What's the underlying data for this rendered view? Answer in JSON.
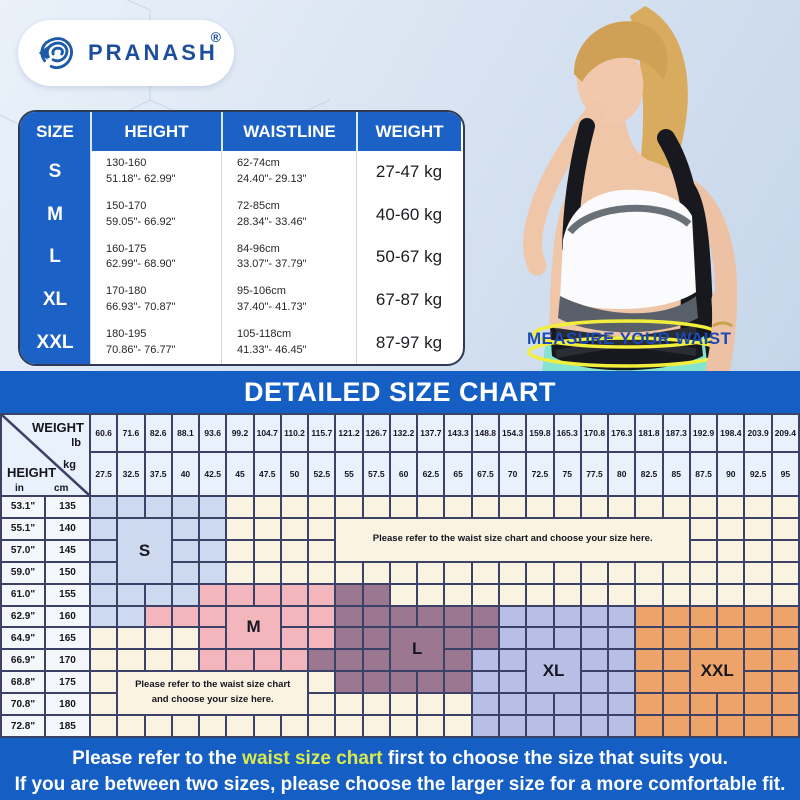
{
  "brand": {
    "name": "PRANASH",
    "registered": "®"
  },
  "colors": {
    "accent_blue": "#1b61c6",
    "banner_blue": "#155fc4",
    "grid_line_navy": "#3c4167",
    "cream": "#fbf3e1",
    "size_s": "#cdd9ef",
    "size_m": "#f3b6bd",
    "size_l": "#9b7890",
    "size_xl": "#b7bfe7",
    "size_xxl": "#eea36b",
    "highlight_yellow": "#dce94e",
    "caption_blue": "#1a49b8",
    "waist_ellipse_yellow": "#f1ef3b"
  },
  "size_table": {
    "headers": [
      "SIZE",
      "HEIGHT",
      "WAISTLINE",
      "WEIGHT"
    ],
    "rows": [
      {
        "size": "S",
        "height_cm": "130-160",
        "height_in": "51.18\"- 62.99\"",
        "waist_cm": "62-74cm",
        "waist_in": "24.40\"- 29.13\"",
        "weight": "27-47 kg"
      },
      {
        "size": "M",
        "height_cm": "150-170",
        "height_in": "59.05\"- 66.92\"",
        "waist_cm": "72-85cm",
        "waist_in": "28.34\"- 33.46\"",
        "weight": "40-60 kg"
      },
      {
        "size": "L",
        "height_cm": "160-175",
        "height_in": "62.99\"- 68.90\"",
        "waist_cm": "84-96cm",
        "waist_in": "33.07\"- 37.79\"",
        "weight": "50-67 kg"
      },
      {
        "size": "XL",
        "height_cm": "170-180",
        "height_in": "66.93\"- 70.87\"",
        "waist_cm": "95-106cm",
        "waist_in": "37.40\"- 41.73\"",
        "weight": "67-87 kg"
      },
      {
        "size": "XXL",
        "height_cm": "180-195",
        "height_in": "70.86\"- 76.77\"",
        "waist_cm": "105-118cm",
        "waist_in": "41.33\"- 46.45\"",
        "weight": "87-97 kg"
      }
    ]
  },
  "photo": {
    "caption": "MEASURE YOUR WAIST"
  },
  "banner": {
    "title": "DETAILED SIZE CHART"
  },
  "chart_data": {
    "type": "heatmap",
    "title": "DETAILED SIZE CHART",
    "xlabel": "WEIGHT",
    "ylabel": "HEIGHT",
    "corner": {
      "weight_label": "WEIGHT",
      "lb_label": "lb",
      "kg_label": "kg",
      "height_label": "HEIGHT",
      "in_label": "in",
      "cm_label": "cm"
    },
    "weight_lb": [
      "60.6",
      "71.6",
      "82.6",
      "88.1",
      "93.6",
      "99.2",
      "104.7",
      "110.2",
      "115.7",
      "121.2",
      "126.7",
      "132.2",
      "137.7",
      "143.3",
      "148.8",
      "154.3",
      "159.8",
      "165.3",
      "170.8",
      "176.3",
      "181.8",
      "187.3",
      "192.9",
      "198.4",
      "203.9",
      "209.4"
    ],
    "weight_kg": [
      "27.5",
      "32.5",
      "37.5",
      "40",
      "42.5",
      "45",
      "47.5",
      "50",
      "52.5",
      "55",
      "57.5",
      "60",
      "62.5",
      "65",
      "67.5",
      "70",
      "72.5",
      "75",
      "77.5",
      "80",
      "82.5",
      "85",
      "87.5",
      "90",
      "92.5",
      "95"
    ],
    "height_in": [
      "53.1\"",
      "55.1\"",
      "57.0\"",
      "59.0\"",
      "61.0\"",
      "62.9\"",
      "64.9\"",
      "66.9\"",
      "68.8\"",
      "70.8\"",
      "72.8\""
    ],
    "height_cm": [
      "135",
      "140",
      "145",
      "150",
      "155",
      "160",
      "165",
      "170",
      "175",
      "180",
      "185"
    ],
    "regions": {
      "S": {
        "rows": {
          "0": [
            1,
            5
          ],
          "1": [
            1,
            5
          ],
          "2": [
            1,
            5
          ],
          "3": [
            1,
            5
          ],
          "4": [
            1,
            4
          ],
          "5": [
            1,
            2
          ]
        }
      },
      "M": {
        "rows": {
          "4": [
            5,
            9
          ],
          "5": [
            3,
            9
          ],
          "6": [
            5,
            9
          ],
          "7": [
            5,
            8
          ]
        }
      },
      "L": {
        "rows": {
          "4": [
            10,
            11
          ],
          "5": [
            10,
            15
          ],
          "6": [
            10,
            15
          ],
          "7": [
            9,
            14
          ],
          "8": [
            10,
            14
          ]
        }
      },
      "XL": {
        "rows": {
          "5": [
            16,
            20
          ],
          "6": [
            16,
            20
          ],
          "7": [
            15,
            20
          ],
          "8": [
            15,
            20
          ],
          "9": [
            15,
            20
          ],
          "10": [
            15,
            20
          ]
        }
      },
      "XXL": {
        "rows": {
          "5": [
            21,
            26
          ],
          "6": [
            21,
            26
          ],
          "7": [
            21,
            26
          ],
          "8": [
            21,
            26
          ],
          "9": [
            21,
            26
          ],
          "10": [
            21,
            26
          ]
        }
      }
    },
    "labels": [
      {
        "text": "S",
        "region": "S",
        "col": 2,
        "colSpan": 2,
        "row": 1,
        "rowSpan": 3
      },
      {
        "text": "M",
        "region": "M",
        "col": 6,
        "colSpan": 2,
        "row": 5,
        "rowSpan": 2
      },
      {
        "text": "L",
        "region": "L",
        "col": 12,
        "colSpan": 2,
        "row": 6,
        "rowSpan": 2
      },
      {
        "text": "XL",
        "region": "XL",
        "col": 17,
        "colSpan": 2,
        "row": 7,
        "rowSpan": 2
      },
      {
        "text": "XXL",
        "region": "XXL",
        "col": 23,
        "colSpan": 2,
        "row": 7,
        "rowSpan": 2
      }
    ],
    "notes": [
      {
        "lines": [
          "Please refer to the waist size chart and choose your size here."
        ],
        "col": 10,
        "colSpan": 13,
        "row": 1,
        "rowSpan": 2
      },
      {
        "lines": [
          "Please refer to the waist size chart",
          "and choose your size here."
        ],
        "col": 2,
        "colSpan": 7,
        "row": 8,
        "rowSpan": 2
      }
    ]
  },
  "footer": {
    "line1_pre": "Please refer to the ",
    "line1_highlight": "waist size chart",
    "line1_post": " first to choose the size that suits you.",
    "line2": "If you are between two sizes, please choose the larger size for a more comfortable fit."
  }
}
